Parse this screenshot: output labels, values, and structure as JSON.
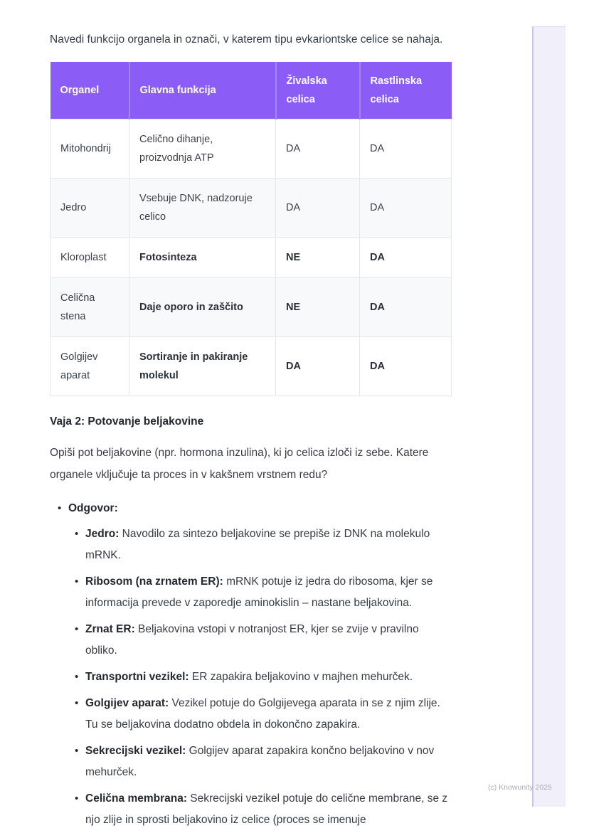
{
  "intro": "Navedi funkcijo organela in označi, v katerem tipu evkariontske celice se nahaja.",
  "table": {
    "headers": [
      "Organel",
      "Glavna funkcija",
      "Živalska celica",
      "Rastlinska celica"
    ],
    "rows": [
      {
        "organel": "Mitohondrij",
        "funkcija": "Celično dihanje, proizvodnja ATP",
        "zivalska": "DA",
        "rastlinska": "DA",
        "bold": false
      },
      {
        "organel": "Jedro",
        "funkcija": "Vsebuje DNK, nadzoruje celico",
        "zivalska": "DA",
        "rastlinska": "DA",
        "bold": false
      },
      {
        "organel": "Kloroplast",
        "funkcija": "Fotosinteza",
        "zivalska": "NE",
        "rastlinska": "DA",
        "bold": true
      },
      {
        "organel": "Celična stena",
        "funkcija": "Daje oporo in zaščito",
        "zivalska": "NE",
        "rastlinska": "DA",
        "bold": true
      },
      {
        "organel": "Golgijev aparat",
        "funkcija": "Sortiranje in pakiranje molekul",
        "zivalska": "DA",
        "rastlinska": "DA",
        "bold": true
      }
    ]
  },
  "section": {
    "heading": "Vaja 2: Potovanje beljakovine",
    "question": "Opiši pot beljakovine (npr. hormona inzulina), ki jo celica izloči iz sebe. Katere organele vključuje ta proces in v kakšnem vrstnem redu?"
  },
  "answer": {
    "label": "Odgovor:",
    "steps": [
      {
        "term": "Jedro:",
        "text": "Navodilo za sintezo beljakovine se prepiše iz DNK na molekulo mRNK."
      },
      {
        "term": "Ribosom (na zrnatem ER):",
        "text": "mRNK potuje iz jedra do ribosoma, kjer se informacija prevede v zaporedje aminokislin – nastane beljakovina."
      },
      {
        "term": "Zrnat ER:",
        "text": "Beljakovina vstopi v notranjost ER, kjer se zvije v pravilno obliko."
      },
      {
        "term": "Transportni vezikel:",
        "text": "ER zapakira beljakovino v majhen mehurček."
      },
      {
        "term": "Golgijev aparat:",
        "text": "Vezikel potuje do Golgijevega aparata in se z njim zlije. Tu se beljakovina dodatno obdela in dokončno zapakira."
      },
      {
        "term": "Sekrecijski vezikel:",
        "text": "Golgijev aparat zapakira končno beljakovino v nov mehurček."
      },
      {
        "term": "Celična membrana:",
        "text": "Sekrecijski vezikel potuje do celične membrane, se z njo zlije in sprosti beljakovino iz celice (proces se imenuje"
      }
    ]
  },
  "footer": {
    "credit": "(c) Knowunity 2025"
  },
  "colors": {
    "header_purple": "#8b5cf6",
    "strip_fill": "#f1effa",
    "strip_border": "#c9c3ee",
    "zebra_row": "#f8f9fa",
    "table_border": "#e6e7ea",
    "body_text": "#363b45",
    "footer_text": "#a9acb6"
  }
}
